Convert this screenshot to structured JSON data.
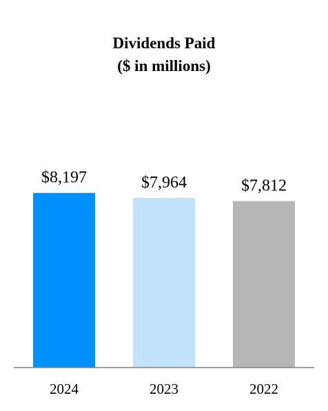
{
  "chart_data": {
    "type": "bar",
    "title": "Dividends Paid",
    "subtitle": "($ in millions)",
    "categories": [
      "2024",
      "2023",
      "2022"
    ],
    "values": [
      8197,
      7964,
      7812
    ],
    "data_labels": [
      "$8,197",
      "$7,964",
      "$7,812"
    ],
    "colors": [
      "#0091FF",
      "#C0E2FB",
      "#B7B7B7"
    ],
    "axis_color": "#808080",
    "ylim": [
      0,
      10000
    ],
    "grid": false,
    "legend": "none"
  }
}
